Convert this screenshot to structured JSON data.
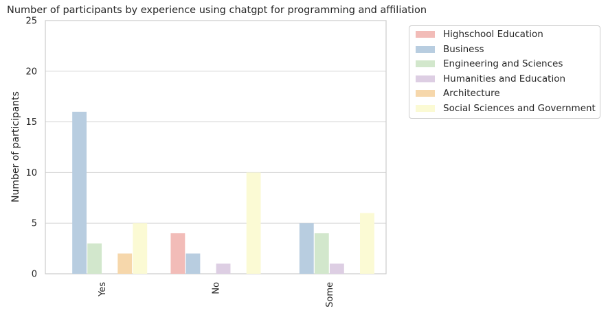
{
  "chart_data": {
    "type": "bar",
    "title": "Number of participants by experience using chatgpt for programming and affiliation",
    "xlabel": "",
    "ylabel": "Number of participants",
    "ylim": [
      0,
      25
    ],
    "yticks": [
      0,
      5,
      10,
      15,
      20,
      25
    ],
    "grid": "horizontal",
    "legend_placement": "outside-top-right",
    "categories": [
      "Yes",
      "No",
      "Some"
    ],
    "series": [
      {
        "name": "Highschool Education",
        "color": "#f2bcb8",
        "values": [
          0,
          4,
          0
        ]
      },
      {
        "name": "Business",
        "color": "#b8cde0",
        "values": [
          16,
          2,
          5
        ]
      },
      {
        "name": "Engineering and Sciences",
        "color": "#d2e7cc",
        "values": [
          3,
          0,
          4
        ]
      },
      {
        "name": "Humanities and Education",
        "color": "#ddcee3",
        "values": [
          0,
          1,
          1
        ]
      },
      {
        "name": "Architecture",
        "color": "#f6d7ab",
        "values": [
          2,
          0,
          0
        ]
      },
      {
        "name": "Social Sciences and Government",
        "color": "#fbfad4",
        "values": [
          5,
          10,
          6
        ]
      }
    ]
  }
}
